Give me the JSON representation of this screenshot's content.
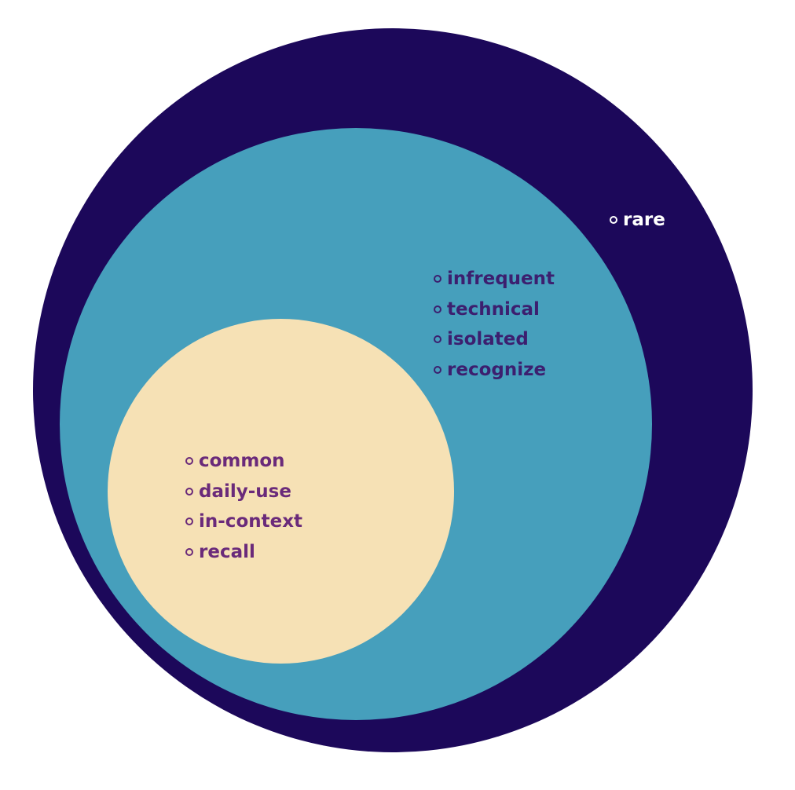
{
  "colors": {
    "outer": "#1c085a",
    "middle": "#469fbc",
    "inner": "#f6e1b5",
    "outer_text": "#ffffff",
    "middle_text": "#3c1f6f",
    "inner_text": "#6a2a7a",
    "background": "#ffffff"
  },
  "icons": {
    "bullet": "hollow-circle-bullet-icon"
  },
  "regions": {
    "outer": {
      "items": [
        {
          "label": "rare"
        }
      ]
    },
    "middle": {
      "items": [
        {
          "label": "infrequent"
        },
        {
          "label": "technical"
        },
        {
          "label": "isolated"
        },
        {
          "label": "recognize"
        }
      ]
    },
    "inner": {
      "items": [
        {
          "label": "common"
        },
        {
          "label": "daily-use"
        },
        {
          "label": "in-context"
        },
        {
          "label": "recall"
        }
      ]
    }
  }
}
